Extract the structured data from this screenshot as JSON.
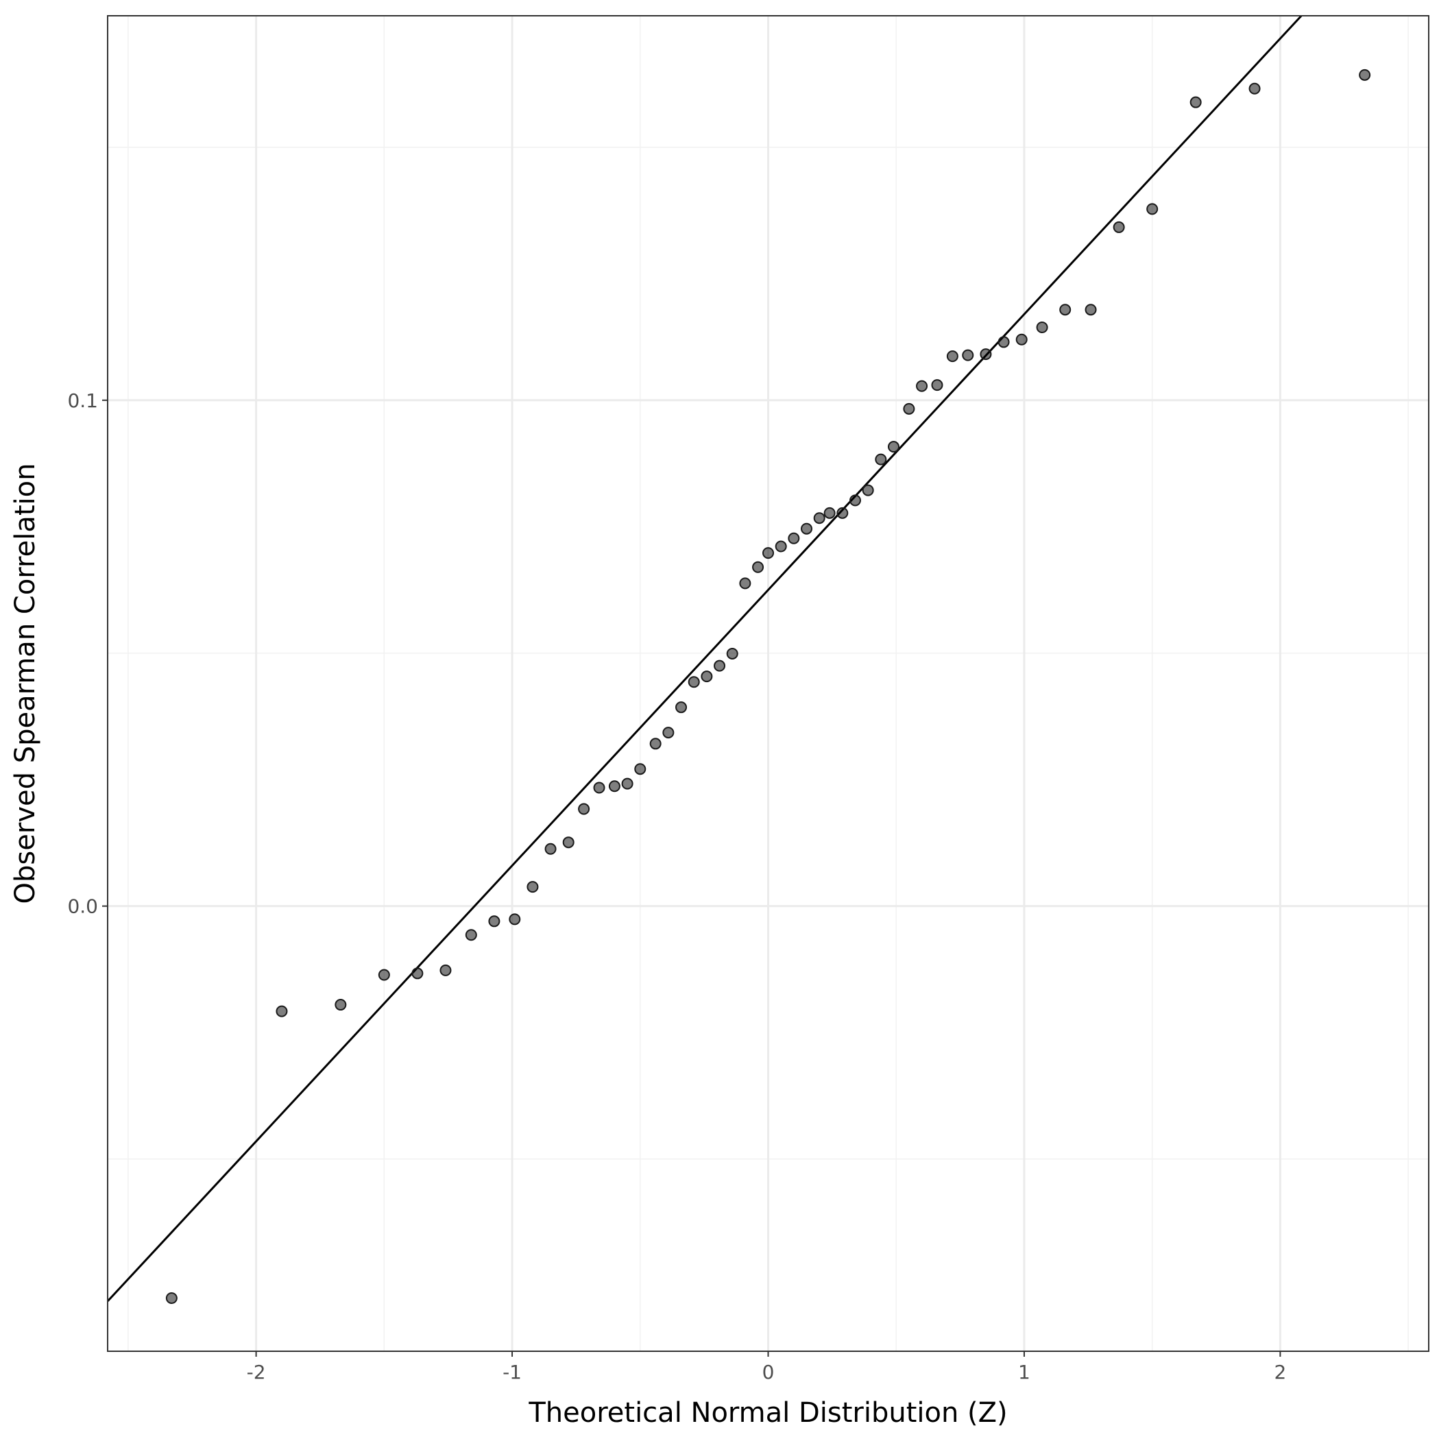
{
  "chart_data": {
    "type": "scatter",
    "title": "",
    "xlabel": "Theoretical Normal Distribution (Z)",
    "ylabel": "Observed Spearman Correlation",
    "xlim": [
      -2.58,
      2.58
    ],
    "ylim": [
      -0.088,
      0.176
    ],
    "x_ticks": [
      -2,
      -1,
      0,
      1,
      2
    ],
    "x_tick_labels": [
      "-2",
      "-1",
      "0",
      "1",
      "2"
    ],
    "y_ticks": [
      0.0,
      0.1
    ],
    "y_tick_labels": [
      "0.0",
      "0.1"
    ],
    "x_minor_ticks": [
      -2.5,
      -1.5,
      -0.5,
      0.5,
      1.5,
      2.5
    ],
    "y_minor_ticks": [
      -0.05,
      0.05,
      0.15
    ],
    "grid": true,
    "legend": "none",
    "reference_line": {
      "intercept": 0.0625,
      "slope": 0.0545
    },
    "point_color": "#000000",
    "series": [
      {
        "x": [
          -2.33,
          -1.9,
          -1.67,
          -1.5,
          -1.37,
          -1.26,
          -1.16,
          -1.07,
          -0.99,
          -0.92,
          -0.85,
          -0.78,
          -0.72,
          -0.66,
          -0.6,
          -0.55,
          -0.5,
          -0.44,
          -0.39,
          -0.34,
          -0.29,
          -0.24,
          -0.19,
          -0.14,
          -0.09,
          -0.04,
          0.0,
          0.05,
          0.1,
          0.15,
          0.2,
          0.24,
          0.29,
          0.34,
          0.39,
          0.44,
          0.49,
          0.55,
          0.6,
          0.66,
          0.72,
          0.78,
          0.85,
          0.92,
          0.99,
          1.07,
          1.16,
          1.26,
          1.37,
          1.5,
          1.67,
          1.9,
          2.33
        ],
        "y": [
          -0.0775,
          -0.0208,
          -0.0195,
          -0.0136,
          -0.0133,
          -0.0127,
          -0.0057,
          -0.003,
          -0.0026,
          0.0038,
          0.0113,
          0.0126,
          0.0192,
          0.0234,
          0.0237,
          0.0242,
          0.0271,
          0.0321,
          0.0343,
          0.0393,
          0.0443,
          0.0454,
          0.0475,
          0.0499,
          0.0638,
          0.067,
          0.0698,
          0.0711,
          0.0727,
          0.0746,
          0.0767,
          0.0777,
          0.0777,
          0.0802,
          0.0822,
          0.0883,
          0.0908,
          0.0983,
          0.1028,
          0.103,
          0.1087,
          0.1089,
          0.1091,
          0.1115,
          0.112,
          0.1144,
          0.1179,
          0.1179,
          0.1342,
          0.1378,
          0.1589,
          0.1616,
          0.1643
        ]
      }
    ]
  }
}
